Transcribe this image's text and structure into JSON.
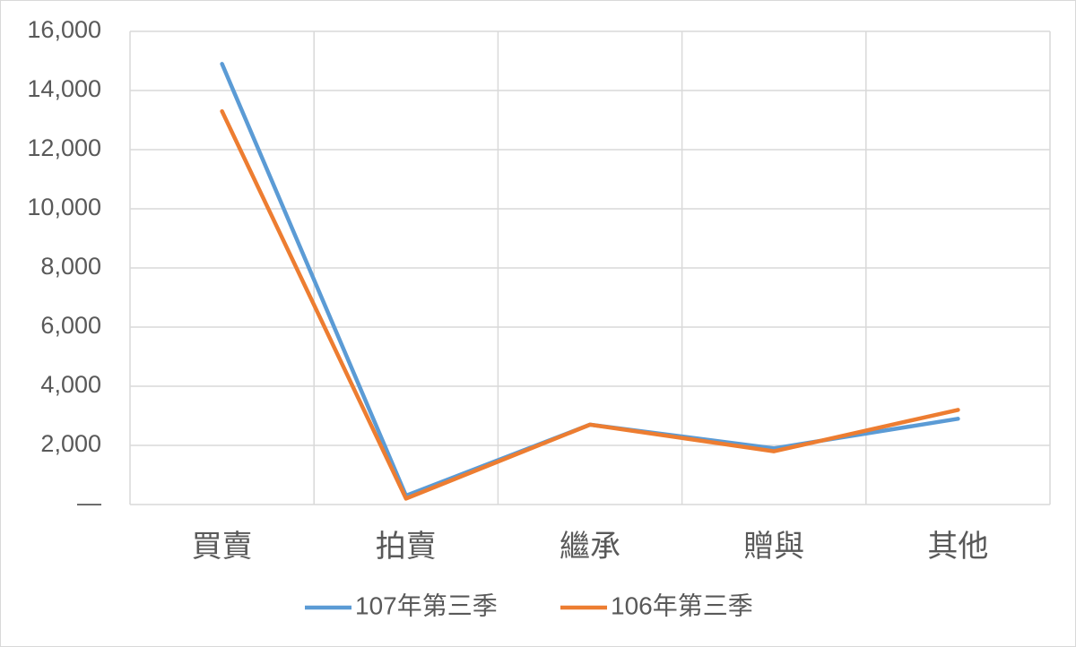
{
  "chart_data": {
    "type": "line",
    "categories": [
      "買賣",
      "拍賣",
      "繼承",
      "贈與",
      "其他"
    ],
    "series": [
      {
        "name": "107年第三季",
        "color": "#5b9bd5",
        "values": [
          14900,
          300,
          2700,
          1900,
          2900
        ]
      },
      {
        "name": "106年第三季",
        "color": "#ed7d31",
        "values": [
          13300,
          200,
          2700,
          1800,
          3200
        ]
      }
    ],
    "ylim": [
      0,
      16000
    ],
    "yticks": [
      {
        "value": 0,
        "label": "—"
      },
      {
        "value": 2000,
        "label": "2,000"
      },
      {
        "value": 4000,
        "label": "4,000"
      },
      {
        "value": 6000,
        "label": "6,000"
      },
      {
        "value": 8000,
        "label": "8,000"
      },
      {
        "value": 10000,
        "label": "10,000"
      },
      {
        "value": 12000,
        "label": "12,000"
      },
      {
        "value": 14000,
        "label": "14,000"
      },
      {
        "value": 16000,
        "label": "16,000"
      }
    ],
    "grid": true,
    "legend": "bottom"
  }
}
